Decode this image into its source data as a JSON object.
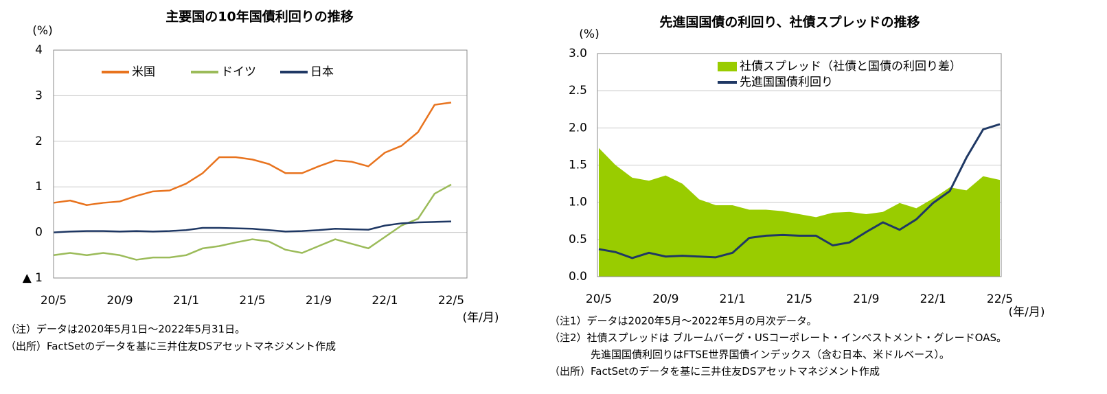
{
  "chart_data": [
    {
      "type": "line",
      "title": "主要国の10年国債利回りの推移",
      "y_label": "(%)",
      "x_label": "(年/月)",
      "categories": [
        "20/5",
        null,
        null,
        null,
        "20/9",
        null,
        null,
        null,
        "21/1",
        null,
        null,
        null,
        "21/5",
        null,
        null,
        null,
        "21/9",
        null,
        null,
        null,
        "22/1",
        null,
        null,
        null,
        "22/5"
      ],
      "series": [
        {
          "name": "米国",
          "color": "#e8731e",
          "values": [
            0.65,
            0.7,
            0.6,
            0.65,
            0.68,
            0.8,
            0.9,
            0.92,
            1.07,
            1.3,
            1.65,
            1.65,
            1.6,
            1.5,
            1.3,
            1.3,
            1.45,
            1.58,
            1.55,
            1.45,
            1.75,
            1.9,
            2.2,
            2.8,
            2.85
          ]
        },
        {
          "name": "ドイツ",
          "color": "#9bbb59",
          "values": [
            -0.5,
            -0.45,
            -0.5,
            -0.45,
            -0.5,
            -0.6,
            -0.55,
            -0.55,
            -0.5,
            -0.35,
            -0.3,
            -0.22,
            -0.15,
            -0.2,
            -0.38,
            -0.45,
            -0.3,
            -0.15,
            -0.25,
            -0.35,
            -0.1,
            0.15,
            0.3,
            0.85,
            1.05
          ]
        },
        {
          "name": "日本",
          "color": "#1f3864",
          "values": [
            0,
            0.02,
            0.03,
            0.03,
            0.02,
            0.03,
            0.02,
            0.03,
            0.05,
            0.1,
            0.1,
            0.09,
            0.08,
            0.05,
            0.02,
            0.03,
            0.05,
            0.08,
            0.07,
            0.06,
            0.15,
            0.2,
            0.22,
            0.23,
            0.24
          ]
        }
      ],
      "ylim": [
        -1,
        4
      ],
      "yticks": [
        {
          "value": -1,
          "label": "▲ 1"
        },
        0,
        1,
        2,
        3,
        4
      ],
      "grid": true,
      "legend": "top",
      "notes": [
        "（注）データは2020年5月1日～2022年5月31日。",
        "（出所）FactSetのデータを基に三井住友DSアセットマネジメント作成"
      ]
    },
    {
      "type": "combo",
      "title": "先進国国債の利回り、社債スプレッドの推移",
      "y_label": "(%)",
      "x_label": "(年/月)",
      "categories": [
        "20/5",
        null,
        null,
        null,
        "20/9",
        null,
        null,
        null,
        "21/1",
        null,
        null,
        null,
        "21/5",
        null,
        null,
        null,
        "21/9",
        null,
        null,
        null,
        "22/1",
        null,
        null,
        null,
        "22/5"
      ],
      "series": [
        {
          "name": "社債スプレッド（社債と国債の利回り差）",
          "type": "area",
          "color": "#99cc00",
          "values": [
            1.73,
            1.5,
            1.33,
            1.29,
            1.36,
            1.25,
            1.04,
            0.96,
            0.96,
            0.9,
            0.9,
            0.88,
            0.84,
            0.8,
            0.86,
            0.87,
            0.84,
            0.87,
            0.99,
            0.92,
            1.05,
            1.2,
            1.16,
            1.35,
            1.3
          ]
        },
        {
          "name": "先進国国債利回り",
          "type": "line",
          "color": "#1f3864",
          "values": [
            0.37,
            0.33,
            0.25,
            0.32,
            0.27,
            0.28,
            0.27,
            0.26,
            0.32,
            0.52,
            0.55,
            0.56,
            0.55,
            0.55,
            0.42,
            0.46,
            0.6,
            0.73,
            0.63,
            0.77,
            0.99,
            1.15,
            1.6,
            1.98,
            2.05
          ]
        }
      ],
      "ylim": [
        0,
        3
      ],
      "yticks": [
        {
          "value": 0,
          "label": "0.0"
        },
        {
          "value": 0.5,
          "label": "0.5"
        },
        {
          "value": 1,
          "label": "1.0"
        },
        {
          "value": 1.5,
          "label": "1.5"
        },
        {
          "value": 2,
          "label": "2.0"
        },
        {
          "value": 2.5,
          "label": "2.5"
        },
        {
          "value": 3,
          "label": "3.0"
        }
      ],
      "grid": true,
      "legend": "top-left",
      "notes": [
        "（注1）データは2020年5月～2022年5月の月次データ。",
        "（注2）社債スプレッドは ブルームバーグ・USコーポレート・インベストメント・グレードOAS。",
        "　　　　先進国国債利回りはFTSE世界国債インデックス（含む日本、米ドルベース）。",
        "（出所）FactSetのデータを基に三井住友DSアセットマネジメント作成"
      ]
    }
  ]
}
